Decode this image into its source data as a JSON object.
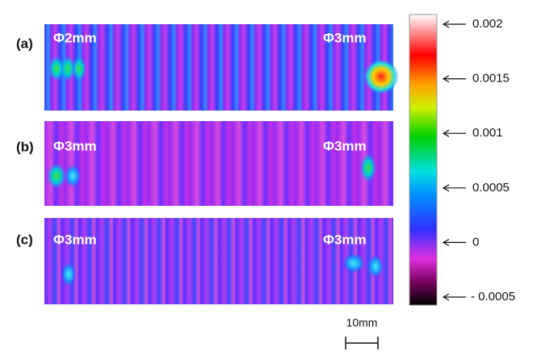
{
  "panels": [
    {
      "label": "(a)",
      "left_marker": "Φ2mm",
      "right_marker": "Φ3mm"
    },
    {
      "label": "(b)",
      "left_marker": "Φ3mm",
      "right_marker": "Φ3mm"
    },
    {
      "label": "(c)",
      "left_marker": "Φ3mm",
      "right_marker": "Φ3mm"
    }
  ],
  "colorbar": {
    "lim": [
      -0.0005,
      0.002
    ],
    "ticks": [
      0.002,
      0.0015,
      0.001,
      0.0005,
      0,
      {
        "value": -0.0005,
        "label": "- 0.0005"
      }
    ]
  },
  "scale_bar": "10mm"
}
